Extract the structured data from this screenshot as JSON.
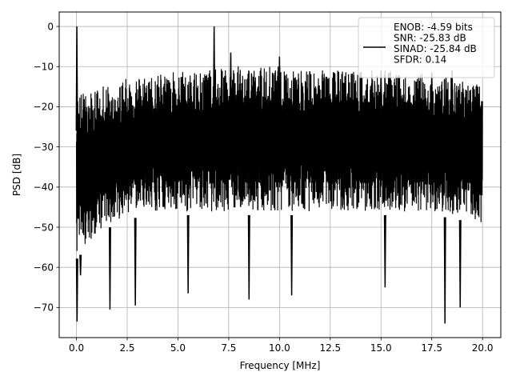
{
  "chart_data": {
    "type": "line",
    "title": "",
    "xlabel": "Frequency [MHz]",
    "ylabel": "PSD [dB]",
    "xlim": [
      -0.85,
      20.9
    ],
    "ylim": [
      -77.5,
      3.6
    ],
    "xticks": [
      0.0,
      2.5,
      5.0,
      7.5,
      10.0,
      12.5,
      15.0,
      17.5,
      20.0
    ],
    "xtick_labels": [
      "0.0",
      "2.5",
      "5.0",
      "7.5",
      "10.0",
      "12.5",
      "15.0",
      "17.5",
      "20.0"
    ],
    "yticks": [
      0,
      -10,
      -20,
      -30,
      -40,
      -50,
      -60,
      -70
    ],
    "ytick_labels": [
      "0",
      "−10",
      "−20",
      "−30",
      "−40",
      "−50",
      "−60",
      "−70"
    ],
    "grid": true,
    "legend_position": "top-right",
    "series_color": "#000000",
    "legend": {
      "entries": [
        "ENOB: -4.59 bits",
        "SNR: -25.83 dB",
        "SINAD: -25.84 dB",
        "SFDR: 0.14"
      ]
    },
    "noise_floor": {
      "upper_envelope_db": [
        -22,
        -20,
        -18,
        -17,
        -16,
        -16,
        -15,
        -15,
        -15,
        -16,
        -16,
        -16,
        -16,
        -16,
        -17,
        -18,
        -20
      ],
      "lower_envelope_db": [
        -62,
        -55,
        -52,
        -51,
        -51,
        -51,
        -51,
        -51,
        -51,
        -51,
        -51,
        -51,
        -51,
        -51,
        -51,
        -52,
        -54
      ]
    },
    "series": [
      {
        "peaks": [
          {
            "x": 0.02,
            "y": 0.0
          },
          {
            "x": 6.78,
            "y": 0.0
          },
          {
            "x": 7.6,
            "y": -6.5
          },
          {
            "x": 10.0,
            "y": -7.5
          },
          {
            "x": 15.0,
            "y": -11.0
          },
          {
            "x": 17.5,
            "y": -11.5
          },
          {
            "x": 18.2,
            "y": -12.5
          },
          {
            "x": 18.5,
            "y": -11.0
          }
        ],
        "dips": [
          {
            "x": 0.03,
            "y": -73.5
          },
          {
            "x": 0.2,
            "y": -62.0
          },
          {
            "x": 1.65,
            "y": -70.5
          },
          {
            "x": 2.9,
            "y": -69.5
          },
          {
            "x": 8.5,
            "y": -68.0
          },
          {
            "x": 10.6,
            "y": -67.0
          },
          {
            "x": 18.15,
            "y": -74.0
          },
          {
            "x": 18.9,
            "y": -70.0
          },
          {
            "x": 15.2,
            "y": -65.0
          },
          {
            "x": 5.5,
            "y": -66.5
          }
        ]
      }
    ]
  }
}
